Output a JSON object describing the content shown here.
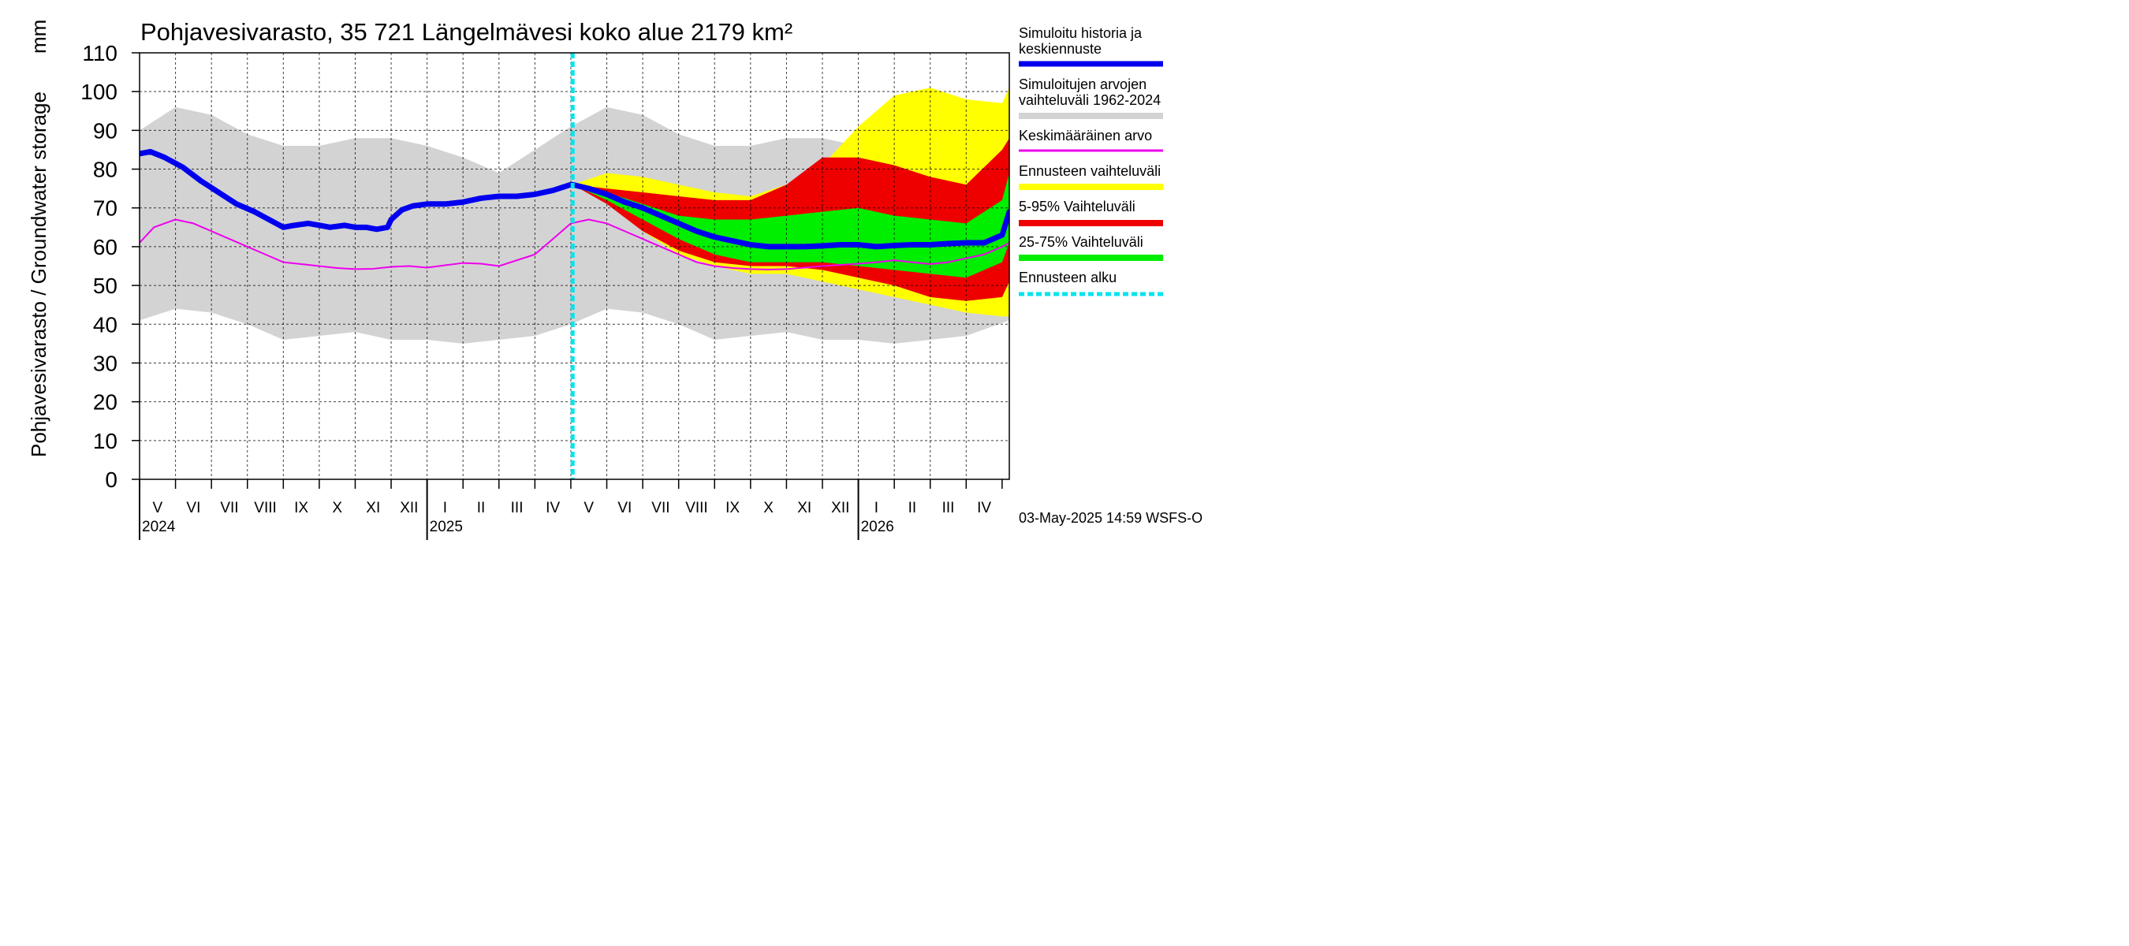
{
  "chart_data": {
    "type": "area",
    "title": "Pohjavesivarasto, 35 721 Längelmävesi koko alue 2179 km²",
    "ylabel": "Pohjavesivarasto / Groundwater storage",
    "yunit": "mm",
    "ylim": [
      0,
      110
    ],
    "yticks": [
      0,
      10,
      20,
      30,
      40,
      50,
      60,
      70,
      80,
      90,
      100,
      110
    ],
    "xlim": [
      0,
      24.2
    ],
    "months": [
      "V",
      "VI",
      "VII",
      "VIII",
      "IX",
      "X",
      "XI",
      "XII",
      "I",
      "II",
      "III",
      "IV",
      "V",
      "VI",
      "VII",
      "VIII",
      "IX",
      "X",
      "XI",
      "XII",
      "I",
      "II",
      "III",
      "IV"
    ],
    "years": [
      {
        "label": "2024",
        "month_index": 0
      },
      {
        "label": "2025",
        "month_index": 8
      },
      {
        "label": "2026",
        "month_index": 20
      }
    ],
    "forecast_start_month": 12.05,
    "timestamp": "03-May-2025 14:59 WSFS-O",
    "legend": [
      {
        "label": "Simuloitu historia ja keskiennuste",
        "color": "#0000ee",
        "style": "line"
      },
      {
        "label": "Simuloitujen arvojen vaihteluväli 1962-2024",
        "color": "#d3d3d3",
        "style": "band"
      },
      {
        "label": "Keskimääräinen arvo",
        "color": "#ee00ee",
        "style": "line"
      },
      {
        "label": "Ennusteen vaihteluväli",
        "color": "#ffff00",
        "style": "band"
      },
      {
        "label": "5-95% Vaihteluväli",
        "color": "#ee0000",
        "style": "band"
      },
      {
        "label": "25-75% Vaihteluväli",
        "color": "#00ee00",
        "style": "band"
      },
      {
        "label": "Ennusteen alku",
        "color": "#00e5ee",
        "style": "dashed"
      }
    ],
    "series": [
      {
        "name": "Simuloitujen arvojen vaihteluväli 1962-2024",
        "kind": "band",
        "color": "#d3d3d3",
        "x": [
          0,
          1,
          2,
          3,
          4,
          5,
          6,
          7,
          8,
          9,
          10,
          11,
          12,
          13,
          14,
          15,
          16,
          17,
          18,
          19,
          20,
          21,
          22,
          23,
          24.2
        ],
        "upper": [
          90,
          96,
          94,
          89,
          86,
          86,
          88,
          88,
          86,
          83,
          79,
          85,
          91,
          96,
          94,
          89,
          86,
          86,
          88,
          88,
          86,
          83,
          77,
          82,
          90
        ],
        "lower": [
          41,
          44,
          43,
          40,
          36,
          37,
          38,
          36,
          36,
          35,
          36,
          37,
          40,
          44,
          43,
          40,
          36,
          37,
          38,
          36,
          36,
          35,
          36,
          37,
          41
        ]
      },
      {
        "name": "Ennusteen vaihteluväli",
        "kind": "band",
        "color": "#ffff00",
        "x": [
          12.05,
          13,
          14,
          15,
          16,
          17,
          18,
          19,
          20,
          21,
          22,
          23,
          24,
          24.2
        ],
        "upper": [
          76,
          79,
          78,
          76,
          74,
          73,
          76,
          81,
          91,
          99,
          101,
          98,
          97,
          101
        ],
        "lower": [
          76,
          72,
          64,
          58,
          55,
          53,
          53,
          51,
          49,
          47,
          45,
          43,
          42,
          42
        ]
      },
      {
        "name": "5-95% Vaihteluväli",
        "kind": "band",
        "color": "#ee0000",
        "x": [
          12.05,
          13,
          14,
          15,
          16,
          17,
          18,
          19,
          20,
          21,
          22,
          23,
          24,
          24.2
        ],
        "upper": [
          76,
          75,
          74,
          73,
          72,
          72,
          76,
          83,
          83,
          81,
          78,
          76,
          85,
          88
        ],
        "lower": [
          76,
          71,
          64,
          59,
          56,
          55,
          55,
          54,
          52,
          50,
          47,
          46,
          47,
          51
        ]
      },
      {
        "name": "25-75% Vaihteluväli",
        "kind": "band",
        "color": "#00ee00",
        "x": [
          12.05,
          13,
          14,
          15,
          16,
          17,
          18,
          19,
          20,
          21,
          22,
          23,
          24,
          24.2
        ],
        "upper": [
          76,
          74,
          71,
          68,
          67,
          67,
          68,
          69,
          70,
          68,
          67,
          66,
          72,
          79
        ],
        "lower": [
          76,
          72,
          67,
          62,
          58,
          56,
          56,
          56,
          55,
          54,
          53,
          52,
          56,
          61
        ]
      },
      {
        "name": "Keskimääräinen arvo",
        "kind": "line",
        "color": "#ee00ee",
        "x": [
          0,
          0.4,
          1,
          1.5,
          2,
          2.5,
          3,
          3.5,
          4,
          4.5,
          5,
          5.5,
          6,
          6.5,
          7,
          7.5,
          8,
          8.5,
          9,
          9.5,
          10,
          10.5,
          11,
          11.5,
          12,
          12.5,
          13,
          13.5,
          14,
          14.5,
          15,
          15.5,
          16,
          16.5,
          17,
          17.5,
          18,
          18.5,
          19,
          19.5,
          20,
          20.5,
          21,
          21.5,
          22,
          22.5,
          23,
          23.5,
          24,
          24.2
        ],
        "y": [
          61,
          65,
          67,
          66,
          64,
          62,
          60,
          58,
          56,
          55.5,
          55,
          54.5,
          54.2,
          54.3,
          54.8,
          55,
          54.6,
          55.2,
          55.8,
          55.6,
          55,
          56.5,
          58,
          62,
          66,
          67,
          66,
          64,
          62,
          60,
          58,
          56,
          55,
          54.5,
          54.2,
          54.1,
          54.2,
          54.6,
          55,
          55.3,
          55.6,
          56,
          56.5,
          56,
          55.5,
          56,
          57,
          58,
          60,
          61
        ]
      },
      {
        "name": "Simuloitu historia ja keskiennuste",
        "kind": "line",
        "color": "#0000ee",
        "x": [
          0,
          0.3,
          0.7,
          1.2,
          1.7,
          2.2,
          2.7,
          3.2,
          3.7,
          4,
          4.3,
          4.7,
          5,
          5.3,
          5.7,
          6,
          6.3,
          6.6,
          6.9,
          7,
          7.3,
          7.6,
          8,
          8.5,
          9,
          9.5,
          10,
          10.5,
          11,
          11.5,
          12,
          12.05,
          12.5,
          13,
          13.5,
          14,
          14.5,
          15,
          15.5,
          16,
          16.5,
          17,
          17.5,
          18,
          18.5,
          19,
          19.5,
          20,
          20.5,
          21,
          21.5,
          22,
          22.5,
          23,
          23.5,
          24,
          24.2
        ],
        "y": [
          84,
          84.5,
          83,
          80.5,
          77,
          74,
          71,
          69,
          66.5,
          65,
          65.5,
          66,
          65.5,
          65,
          65.5,
          65,
          65,
          64.5,
          65,
          67,
          69.5,
          70.5,
          71,
          71,
          71.5,
          72.5,
          73,
          73,
          73.5,
          74.5,
          76,
          76,
          75,
          73.5,
          71.5,
          70,
          68,
          66,
          64,
          62.5,
          61.5,
          60.5,
          60,
          60,
          60,
          60.2,
          60.5,
          60.5,
          60,
          60.3,
          60.5,
          60.5,
          60.8,
          61,
          61,
          63,
          69
        ]
      }
    ]
  }
}
